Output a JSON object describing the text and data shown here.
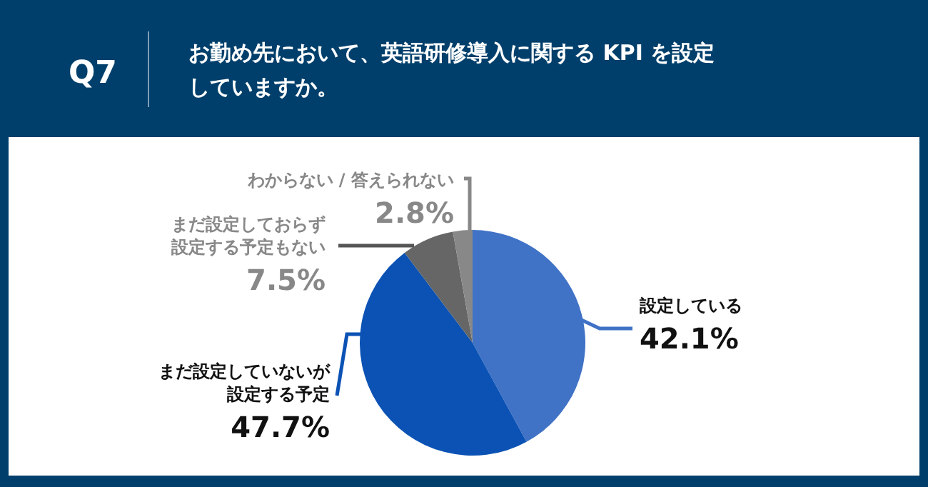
{
  "chart_data": {
    "type": "pie",
    "title": "Q7",
    "subtitle": "お勤め先において、英語研修導入に関する KPI を設定していますか。",
    "categories": [
      "設定している",
      "まだ設定していないが設定する予定",
      "まだ設定しておらず設定する予定もない",
      "わからない / 答えられない"
    ],
    "values": [
      42.1,
      47.7,
      7.5,
      2.8
    ],
    "colors": [
      "#4072c6",
      "#0b52b4",
      "#666666",
      "#888888"
    ],
    "value_labels": [
      "42.1%",
      "47.7%",
      "7.5%",
      "2.8%"
    ]
  }
}
